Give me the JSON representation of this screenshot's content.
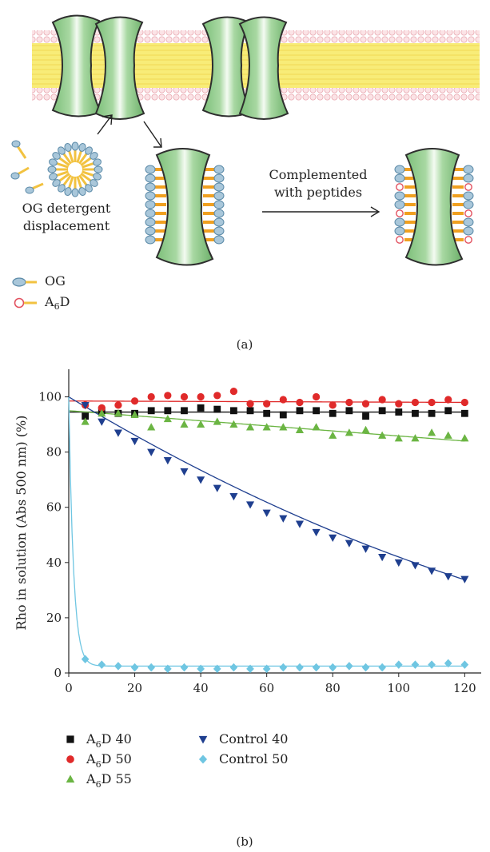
{
  "diagram": {
    "detergent_caption_line1": "OG detergent",
    "detergent_caption_line2": "displacement",
    "arrow_caption_line1": "Complemented",
    "arrow_caption_line2": "with peptides",
    "legend": [
      {
        "label": "OG",
        "head_color": "#a9c7da"
      },
      {
        "label": "A6D",
        "label_main": "A",
        "label_sub": "6",
        "label_tail": "D",
        "head_color": "#f4c2c8"
      }
    ],
    "panel_label": "(a)"
  },
  "chart_data": {
    "type": "scatter",
    "ylabel": "Rho in solution (Abs 500 nm) (%)",
    "xlabel": "",
    "xlim": [
      0,
      125
    ],
    "ylim": [
      0,
      110
    ],
    "x_ticks": [
      0,
      20,
      40,
      60,
      80,
      100,
      120
    ],
    "y_ticks": [
      0,
      20,
      40,
      60,
      80,
      100
    ],
    "legend_placement": "below",
    "series": [
      {
        "name": "A6D 40",
        "name_main": "A",
        "name_sub": "6",
        "name_tail": "D 40",
        "marker": "square",
        "color": "#111111",
        "x": [
          5,
          10,
          15,
          20,
          25,
          30,
          35,
          40,
          45,
          50,
          55,
          60,
          65,
          70,
          75,
          80,
          85,
          90,
          95,
          100,
          105,
          110,
          115,
          120
        ],
        "y": [
          93,
          95,
          94,
          94,
          95,
          95,
          95,
          96,
          95.5,
          95,
          95,
          94,
          93.5,
          95,
          95,
          94,
          95,
          93,
          95,
          94.5,
          94,
          94,
          95,
          94
        ],
        "fit": {
          "kind": "linear",
          "y0": 94.5,
          "y1": 94.5,
          "x0": 0,
          "x1": 120
        }
      },
      {
        "name": "A6D 50",
        "name_main": "A",
        "name_sub": "6",
        "name_tail": "D 50",
        "marker": "circle",
        "color": "#e02a2a",
        "x": [
          5,
          10,
          15,
          20,
          25,
          30,
          35,
          40,
          45,
          50,
          55,
          60,
          65,
          70,
          75,
          80,
          85,
          90,
          95,
          100,
          105,
          110,
          115,
          120
        ],
        "y": [
          97,
          96,
          97,
          98.5,
          100,
          100.5,
          100,
          100,
          100.5,
          102,
          97.5,
          97.5,
          99,
          98,
          100,
          97,
          98,
          97.5,
          99,
          97.5,
          98,
          98,
          99,
          98
        ],
        "fit": {
          "kind": "linear",
          "y0": 98.5,
          "y1": 98,
          "x0": 0,
          "x1": 120
        }
      },
      {
        "name": "A6D 55",
        "name_main": "A",
        "name_sub": "6",
        "name_tail": "D 55",
        "marker": "triangle-up",
        "color": "#6bb543",
        "x": [
          5,
          10,
          15,
          20,
          25,
          30,
          35,
          40,
          45,
          50,
          55,
          60,
          65,
          70,
          75,
          80,
          85,
          90,
          95,
          100,
          105,
          110,
          115,
          120
        ],
        "y": [
          91,
          94,
          94,
          93.5,
          89,
          92,
          90,
          90,
          91,
          90,
          89,
          89,
          89,
          88,
          89,
          86,
          87,
          88,
          86,
          85,
          85,
          87,
          86,
          85
        ],
        "fit": {
          "kind": "linear",
          "y0": 95,
          "y1": 84,
          "x0": 0,
          "x1": 120
        }
      },
      {
        "name": "Control 40",
        "marker": "triangle-down",
        "color": "#1f3f8f",
        "x": [
          5,
          10,
          15,
          20,
          25,
          30,
          35,
          40,
          45,
          50,
          55,
          60,
          65,
          70,
          75,
          80,
          85,
          90,
          95,
          100,
          105,
          110,
          115,
          120
        ],
        "y": [
          97,
          91,
          87,
          84,
          80,
          77,
          73,
          70,
          67,
          64,
          61,
          58,
          56,
          54,
          51,
          49,
          47,
          45,
          42,
          40,
          39,
          37,
          35,
          34
        ],
        "fit": {
          "kind": "quadratic",
          "a": 100,
          "b": -0.72,
          "c": 0.0014,
          "x0": 0,
          "x1": 120
        }
      },
      {
        "name": "Control 50",
        "marker": "diamond",
        "color": "#6fc6e2",
        "x": [
          5,
          10,
          15,
          20,
          25,
          30,
          35,
          40,
          45,
          50,
          55,
          60,
          65,
          70,
          75,
          80,
          85,
          90,
          95,
          100,
          105,
          110,
          115,
          120
        ],
        "y": [
          5,
          3,
          2.5,
          2,
          2,
          1.5,
          2,
          1.5,
          1.5,
          2,
          1.5,
          1.5,
          2,
          2,
          2,
          2,
          2.5,
          2,
          2,
          3,
          3,
          3,
          3.5,
          3
        ],
        "fit": {
          "kind": "exp-decay",
          "amp": 97.5,
          "rate": 0.7,
          "base": 2.5,
          "x0": 0,
          "x1": 120
        }
      }
    ]
  },
  "panel_label_b": "(b)"
}
